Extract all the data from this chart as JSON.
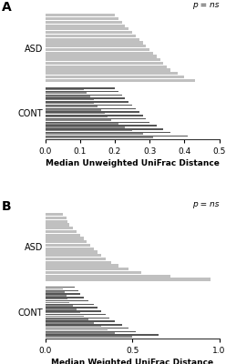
{
  "panel_A": {
    "title": "A",
    "pval_text": "p = ns",
    "xlabel": "Median Unweighted UniFrac Distance",
    "xlim": [
      0,
      0.5
    ],
    "xticks": [
      0.0,
      0.1,
      0.2,
      0.3,
      0.4,
      0.5
    ],
    "asd_values": [
      0.43,
      0.4,
      0.38,
      0.36,
      0.35,
      0.34,
      0.33,
      0.32,
      0.31,
      0.3,
      0.29,
      0.28,
      0.27,
      0.26,
      0.25,
      0.24,
      0.23,
      0.22,
      0.21,
      0.2
    ],
    "cont_long": [
      0.41,
      0.36,
      0.34,
      0.32,
      0.3,
      0.29,
      0.28,
      0.27,
      0.26,
      0.25,
      0.24,
      0.23,
      0.22,
      0.21,
      0.2
    ],
    "cont_short": [
      0.31,
      0.28,
      0.25,
      0.23,
      0.21,
      0.19,
      0.18,
      0.17,
      0.16,
      0.15,
      0.14,
      0.14,
      0.13,
      0.12,
      0.11
    ],
    "asd_color": "#c0c0c0",
    "cont_color1": "#555555",
    "cont_color2": "#888888",
    "asd_label": "ASD",
    "cont_label": "CONT"
  },
  "panel_B": {
    "title": "B",
    "pval_text": "p = ns",
    "xlabel": "Median Weighted UniFrac Distance",
    "xlim": [
      0,
      1.0
    ],
    "xticks": [
      0.0,
      0.5,
      1.0
    ],
    "asd_values": [
      0.95,
      0.72,
      0.55,
      0.48,
      0.42,
      0.38,
      0.35,
      0.32,
      0.3,
      0.28,
      0.26,
      0.24,
      0.22,
      0.2,
      0.18,
      0.16,
      0.14,
      0.13,
      0.12,
      0.1
    ],
    "cont_long": [
      0.65,
      0.52,
      0.48,
      0.44,
      0.4,
      0.37,
      0.35,
      0.32,
      0.3,
      0.28,
      0.25,
      0.22,
      0.2,
      0.19,
      0.17
    ],
    "cont_short": [
      0.5,
      0.4,
      0.36,
      0.32,
      0.28,
      0.25,
      0.22,
      0.2,
      0.18,
      0.16,
      0.14,
      0.13,
      0.12,
      0.11,
      0.1
    ],
    "asd_color": "#c0c0c0",
    "cont_color1": "#555555",
    "cont_color2": "#888888",
    "asd_label": "ASD",
    "cont_label": "CONT"
  },
  "fig_bg": "#ffffff"
}
